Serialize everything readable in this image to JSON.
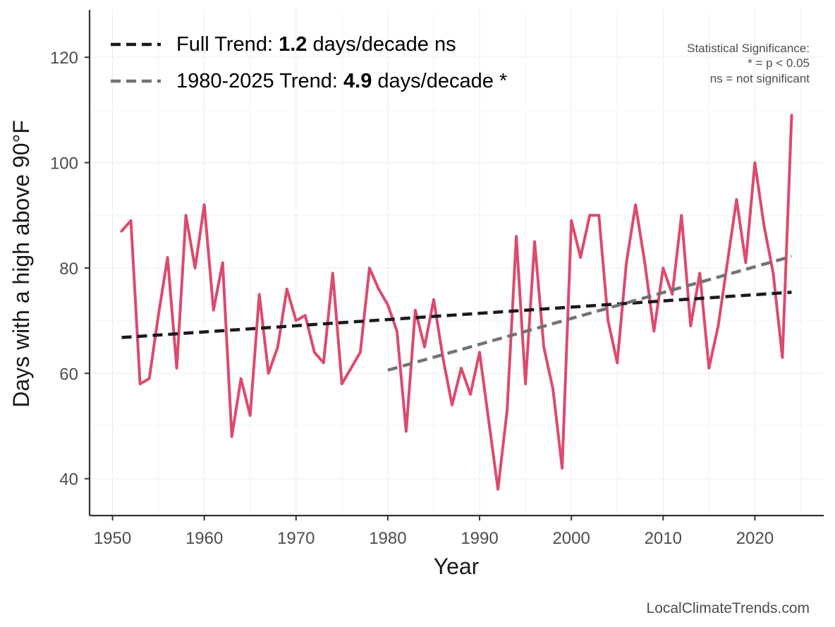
{
  "chart_data": {
    "type": "line",
    "xlabel": "Year",
    "ylabel": "Days with a high above 90°F",
    "xlim": [
      1947.5,
      2027.5
    ],
    "ylim": [
      33,
      129
    ],
    "xticks": [
      1950,
      1960,
      1970,
      1980,
      1990,
      2000,
      2010,
      2020
    ],
    "yticks": [
      40,
      60,
      80,
      100,
      120
    ],
    "grid": true,
    "series": [
      {
        "name": "",
        "color": "#dc4a6e",
        "x": [
          1951,
          1952,
          1953,
          1954,
          1955,
          1956,
          1957,
          1958,
          1959,
          1960,
          1961,
          1962,
          1963,
          1964,
          1965,
          1966,
          1967,
          1968,
          1969,
          1970,
          1971,
          1972,
          1973,
          1974,
          1975,
          1976,
          1977,
          1978,
          1979,
          1980,
          1981,
          1982,
          1983,
          1984,
          1985,
          1986,
          1987,
          1988,
          1989,
          1990,
          1991,
          1992,
          1993,
          1994,
          1995,
          1996,
          1997,
          1998,
          1999,
          2000,
          2001,
          2002,
          2003,
          2004,
          2005,
          2006,
          2007,
          2008,
          2009,
          2010,
          2011,
          2012,
          2013,
          2014,
          2015,
          2016,
          2017,
          2018,
          2019,
          2020,
          2021,
          2022,
          2023,
          2024
        ],
        "values": [
          87,
          89,
          58,
          59,
          71,
          82,
          61,
          90,
          80,
          92,
          72,
          81,
          48,
          59,
          52,
          75,
          60,
          65,
          76,
          70,
          71,
          64,
          62,
          79,
          58,
          61,
          64,
          80,
          76,
          73,
          68,
          49,
          72,
          65,
          74,
          63,
          54,
          61,
          56,
          64,
          51,
          38,
          53,
          86,
          58,
          85,
          65,
          57,
          42,
          89,
          82,
          90,
          90,
          70,
          62,
          81,
          92,
          81,
          68,
          80,
          75,
          90,
          69,
          79,
          61,
          69,
          81,
          93,
          81,
          100,
          88,
          79,
          63,
          109
        ]
      }
    ],
    "trends": [
      {
        "name": "Full Trend",
        "label_prefix": "Full Trend: ",
        "rate": "1.2",
        "label_suffix": " days/decade ns",
        "color": "#1a1a1a",
        "x": [
          1951,
          2024
        ],
        "y": [
          66.8,
          75.4
        ]
      },
      {
        "name": "1980-2025 Trend",
        "label_prefix": "1980-2025 Trend: ",
        "rate": "4.9",
        "label_suffix": " days/decade *",
        "color": "#737373",
        "x": [
          1980,
          2024
        ],
        "y": [
          60.6,
          82.2
        ]
      }
    ],
    "legend": "top-left",
    "annotations": {
      "significance": [
        "Statistical Significance:",
        "* = p < 0.05",
        "ns = not significant"
      ],
      "source": "LocalClimateTrends.com"
    }
  }
}
